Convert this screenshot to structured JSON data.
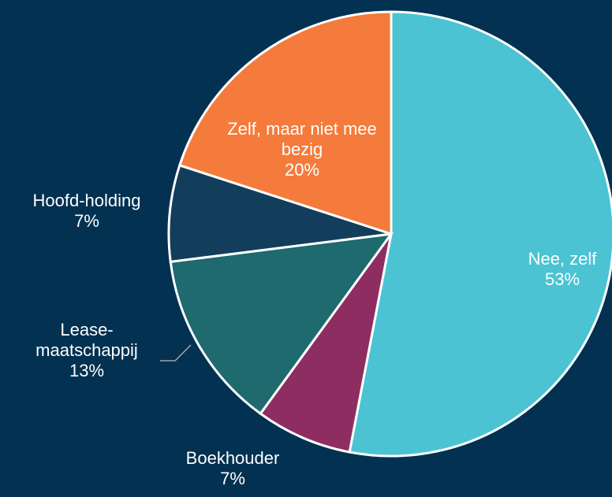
{
  "chart_data": {
    "type": "pie",
    "categories": [
      "Nee, zelf",
      "Boekhouder",
      "Lease-maatschappij",
      "Hoofd-holding",
      "Zelf, maar niet mee bezig"
    ],
    "values": [
      53,
      7,
      13,
      7,
      20
    ],
    "value_labels": [
      "53%",
      "7%",
      "13%",
      "7%",
      "20%"
    ],
    "colors": [
      "#4bc3d3",
      "#8e2d62",
      "#1e6a6e",
      "#123e5c",
      "#f47b3b"
    ]
  }
}
